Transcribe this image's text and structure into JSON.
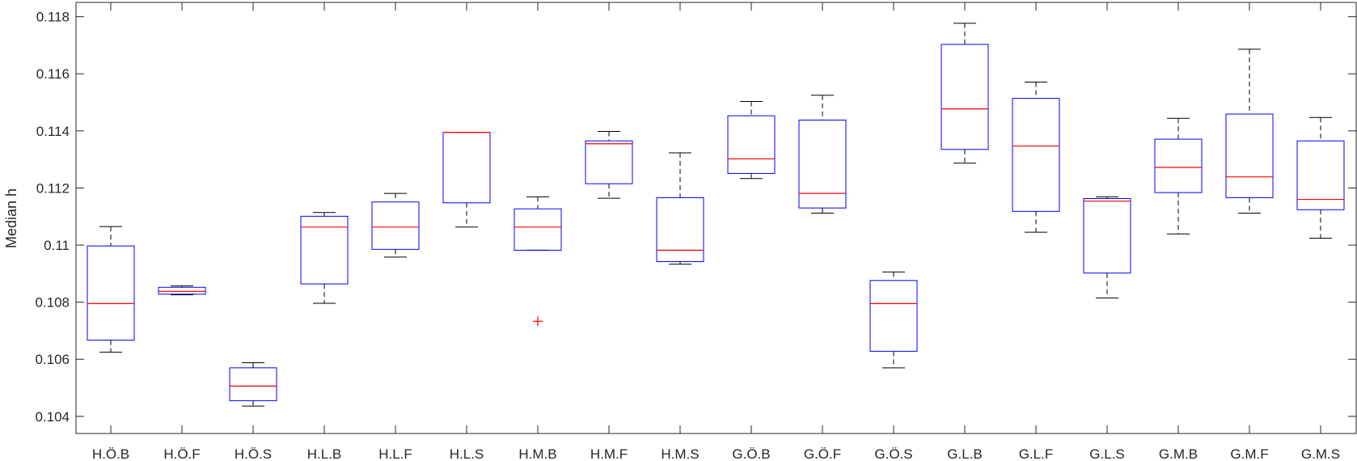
{
  "chart_data": {
    "type": "boxplot",
    "title": "",
    "xlabel": "",
    "ylabel": "Median h",
    "ylim": [
      0.1034,
      0.1185
    ],
    "yticks": [
      0.104,
      0.106,
      0.108,
      0.11,
      0.112,
      0.114,
      0.116,
      0.118
    ],
    "ytick_labels": [
      "0.104",
      "0.106",
      "0.108",
      "0.11",
      "0.112",
      "0.114",
      "0.116",
      "0.118"
    ],
    "categories": [
      "H.Ö.B",
      "H.Ö.F",
      "H.Ö.S",
      "H.L.B",
      "H.L.F",
      "H.L.S",
      "H.M.B",
      "H.M.F",
      "H.M.S",
      "G.Ö.B",
      "G.Ö.F",
      "G.Ö.S",
      "G.L.B",
      "G.L.F",
      "G.L.S",
      "G.M.B",
      "G.M.F",
      "G.M.S"
    ],
    "boxes": [
      {
        "whisker_low": 0.10625,
        "q1": 0.10667,
        "median": 0.10795,
        "q3": 0.10997,
        "whisker_high": 0.11065,
        "outliers": []
      },
      {
        "whisker_low": 0.10826,
        "q1": 0.10828,
        "median": 0.10838,
        "q3": 0.10852,
        "whisker_high": 0.10857,
        "outliers": []
      },
      {
        "whisker_low": 0.10436,
        "q1": 0.10455,
        "median": 0.10506,
        "q3": 0.1057,
        "whisker_high": 0.10588,
        "outliers": []
      },
      {
        "whisker_low": 0.10796,
        "q1": 0.10864,
        "median": 0.11063,
        "q3": 0.11101,
        "whisker_high": 0.11114,
        "outliers": []
      },
      {
        "whisker_low": 0.10958,
        "q1": 0.10985,
        "median": 0.11063,
        "q3": 0.11151,
        "whisker_high": 0.11181,
        "outliers": []
      },
      {
        "whisker_low": 0.11063,
        "q1": 0.11148,
        "median": 0.11395,
        "q3": 0.11395,
        "whisker_high": 0.11395,
        "outliers": []
      },
      {
        "whisker_low": 0.10982,
        "q1": 0.10982,
        "median": 0.11063,
        "q3": 0.11127,
        "whisker_high": 0.11169,
        "outliers": [
          0.10733
        ]
      },
      {
        "whisker_low": 0.11164,
        "q1": 0.11215,
        "median": 0.11355,
        "q3": 0.11365,
        "whisker_high": 0.11398,
        "outliers": []
      },
      {
        "whisker_low": 0.10933,
        "q1": 0.10942,
        "median": 0.10982,
        "q3": 0.11166,
        "whisker_high": 0.11323,
        "outliers": []
      },
      {
        "whisker_low": 0.11233,
        "q1": 0.11251,
        "median": 0.11302,
        "q3": 0.11453,
        "whisker_high": 0.11503,
        "outliers": []
      },
      {
        "whisker_low": 0.11112,
        "q1": 0.1113,
        "median": 0.11181,
        "q3": 0.11438,
        "whisker_high": 0.11525,
        "outliers": []
      },
      {
        "whisker_low": 0.1057,
        "q1": 0.10628,
        "median": 0.10795,
        "q3": 0.10876,
        "whisker_high": 0.10906,
        "outliers": []
      },
      {
        "whisker_low": 0.11287,
        "q1": 0.11335,
        "median": 0.11477,
        "q3": 0.11703,
        "whisker_high": 0.11777,
        "outliers": []
      },
      {
        "whisker_low": 0.11045,
        "q1": 0.11118,
        "median": 0.11347,
        "q3": 0.11514,
        "whisker_high": 0.11571,
        "outliers": []
      },
      {
        "whisker_low": 0.10815,
        "q1": 0.10902,
        "median": 0.11154,
        "q3": 0.11163,
        "whisker_high": 0.11169,
        "outliers": []
      },
      {
        "whisker_low": 0.11039,
        "q1": 0.11184,
        "median": 0.11272,
        "q3": 0.11371,
        "whisker_high": 0.11444,
        "outliers": []
      },
      {
        "whisker_low": 0.11112,
        "q1": 0.11166,
        "median": 0.11239,
        "q3": 0.11459,
        "whisker_high": 0.11686,
        "outliers": []
      },
      {
        "whisker_low": 0.11024,
        "q1": 0.11124,
        "median": 0.1116,
        "q3": 0.11365,
        "whisker_high": 0.11447,
        "outliers": []
      }
    ],
    "grid": false,
    "legend": "none",
    "colors": {
      "box": "#0000ff",
      "median": "#ff0000",
      "whisker": "#000000",
      "outlier": "#ff0000",
      "axis": "#262626"
    }
  }
}
